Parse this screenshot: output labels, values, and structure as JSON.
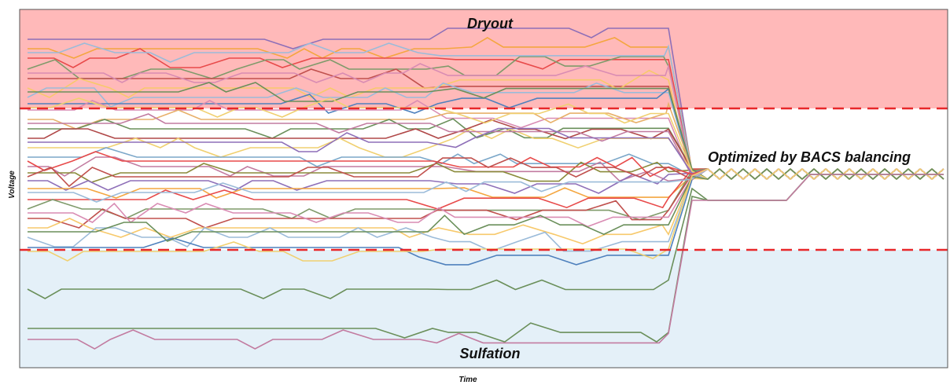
{
  "zones": {
    "top": "Dryout",
    "bottom": "Sulfation"
  },
  "annotation": "Optimized by BACS balancing",
  "axes": {
    "y": "Voltage",
    "x": "Time"
  }
}
